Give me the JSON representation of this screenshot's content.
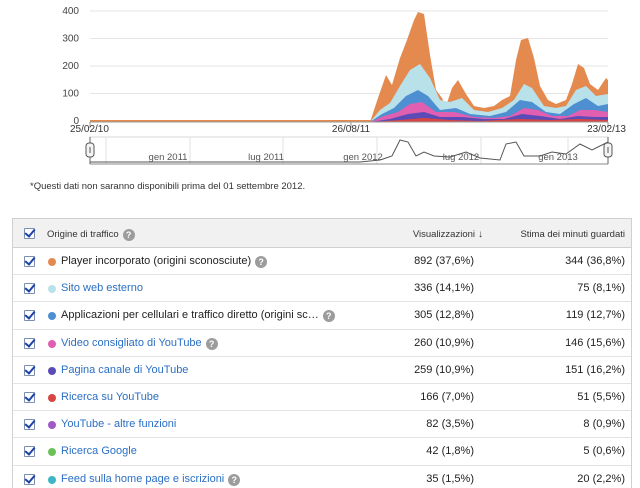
{
  "chart": {
    "y_ticks": [
      "400",
      "300",
      "200",
      "100",
      "0"
    ],
    "x_labels": [
      "25/02/10",
      "26/08/11",
      "23/02/13"
    ],
    "timeline_labels": [
      "gen 2011",
      "lug 2011",
      "gen 2012",
      "lug 2012",
      "gen 2013"
    ],
    "colors": {
      "player": "#e58a4e",
      "sito": "#b9e1ea",
      "app": "#4d8fd1",
      "video": "#e05fb0",
      "pagina": "#5b4bb6",
      "ricerca_yt": "#d64541",
      "accent": "#2a6fc4"
    }
  },
  "note": "*Questi dati non saranno disponibili prima del 01 settembre 2012.",
  "table": {
    "headers": {
      "source": "Origine di traffico",
      "views": "Visualizzazioni",
      "minutes": "Stima dei minuti guardati",
      "help": "?",
      "sort_arrow": "↓"
    },
    "rows": [
      {
        "source": "Player incorporato (origini sconosciute)",
        "color": "#e58a4e",
        "link": false,
        "help": "?",
        "views": "892 (37,6%)",
        "minutes": "344 (36,8%)"
      },
      {
        "source": "Sito web esterno",
        "color": "#b9e1ea",
        "link": true,
        "help": "",
        "views": "336 (14,1%)",
        "minutes": "75 (8,1%)"
      },
      {
        "source": "Applicazioni per cellulari e traffico diretto (origini sc…",
        "color": "#4d8fd1",
        "link": false,
        "help": "?",
        "views": "305 (12,8%)",
        "minutes": "119 (12,7%)"
      },
      {
        "source": "Video consigliato di YouTube",
        "color": "#e05fb0",
        "link": true,
        "help": "?",
        "views": "260 (10,9%)",
        "minutes": "146 (15,6%)"
      },
      {
        "source": "Pagina canale di YouTube",
        "color": "#5b4bb6",
        "link": true,
        "help": "",
        "views": "259 (10,9%)",
        "minutes": "151 (16,2%)"
      },
      {
        "source": "Ricerca su YouTube",
        "color": "#d64541",
        "link": true,
        "help": "",
        "views": "166 (7,0%)",
        "minutes": "51 (5,5%)"
      },
      {
        "source": "YouTube - altre funzioni",
        "color": "#a05ac8",
        "link": true,
        "help": "",
        "views": "82 (3,5%)",
        "minutes": "8 (0,9%)"
      },
      {
        "source": "Ricerca Google",
        "color": "#6cc05a",
        "link": true,
        "help": "",
        "views": "42 (1,8%)",
        "minutes": "5 (0,6%)"
      },
      {
        "source": "Feed sulla home page e iscrizioni",
        "color": "#3cb6c6",
        "link": true,
        "help": "?",
        "views": "35 (1,5%)",
        "minutes": "20 (2,2%)"
      }
    ]
  }
}
